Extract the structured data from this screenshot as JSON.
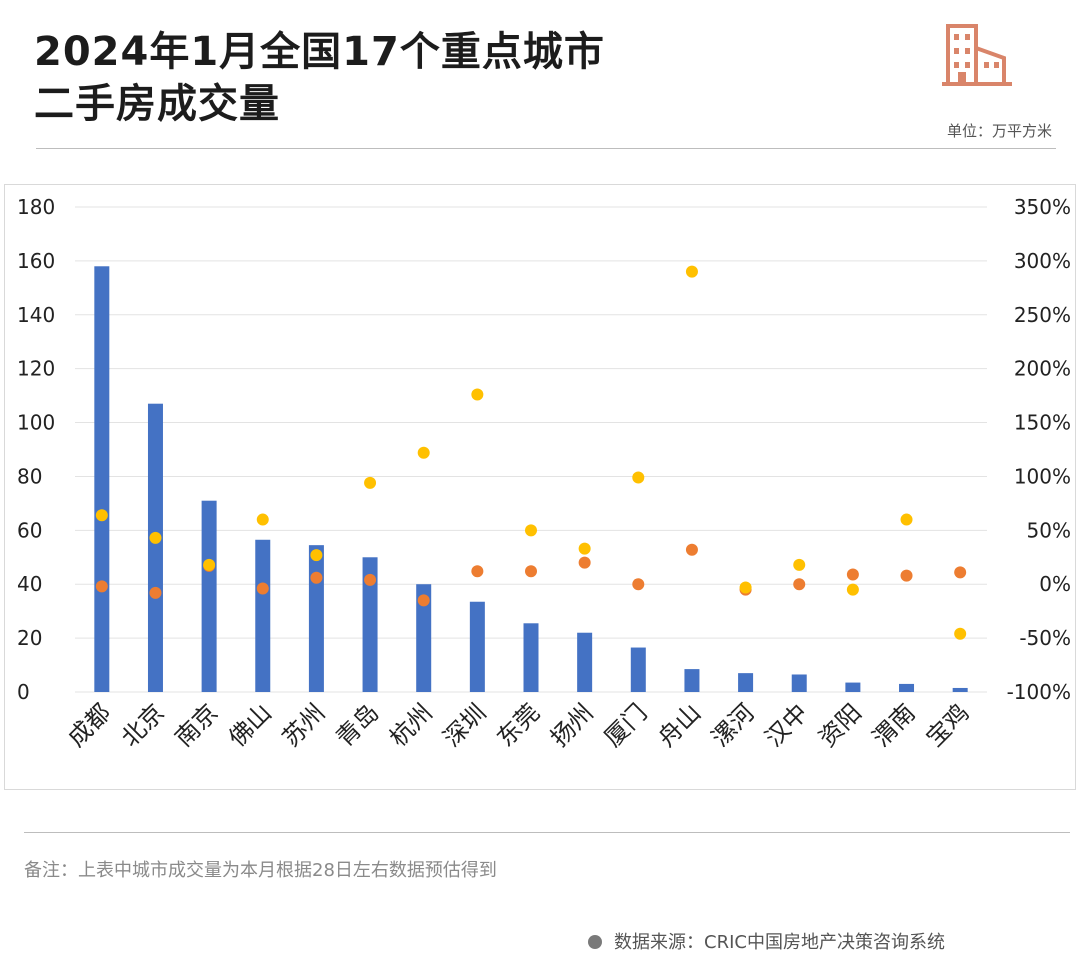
{
  "header": {
    "title_line1": "2024年1月全国17个重点城市",
    "title_line2": "二手房成交量",
    "unit": "单位：万平方米",
    "logo_icon": "building-icon"
  },
  "colors": {
    "bar": "#4472C4",
    "dot_orange": "#ED7D31",
    "dot_yellow": "#FFC000",
    "logo": "#D9856A"
  },
  "chart_data": {
    "type": "bar",
    "categories": [
      "成都",
      "北京",
      "南京",
      "佛山",
      "苏州",
      "青岛",
      "杭州",
      "深圳",
      "东莞",
      "扬州",
      "厦门",
      "舟山",
      "漯河",
      "汉中",
      "资阳",
      "渭南",
      "宝鸡"
    ],
    "series": [
      {
        "type": "bar",
        "axis": "left",
        "values": [
          158,
          107,
          71,
          56.5,
          54.5,
          50,
          40,
          33.5,
          25.5,
          22,
          16.5,
          8.5,
          7,
          6.5,
          3.5,
          3,
          1.5
        ]
      },
      {
        "type": "scatter",
        "axis": "right",
        "color": "orange",
        "values": [
          -2,
          -8,
          17,
          -4,
          6,
          4,
          -15,
          12,
          12,
          20,
          0,
          32,
          -5,
          0,
          9,
          8,
          11
        ]
      },
      {
        "type": "scatter",
        "axis": "right",
        "color": "yellow",
        "values": [
          64,
          43,
          18,
          null,
          27,
          null,
          null,
          176,
          50,
          33,
          99,
          290,
          -3,
          18,
          -5,
          60,
          -46
        ]
      }
    ],
    "orange_overrides": {
      "佛山": -4
    },
    "yellow_extra": {
      "佛山": 60,
      "青岛": 94,
      "杭州": 122
    },
    "left_axis": {
      "ylim": [
        0,
        180
      ],
      "ticks": [
        "0",
        "20",
        "40",
        "60",
        "80",
        "100",
        "120",
        "140",
        "160",
        "180"
      ]
    },
    "right_axis": {
      "ylim": [
        -100,
        350
      ],
      "ticks": [
        "-100%",
        "-50%",
        "0%",
        "50%",
        "100%",
        "150%",
        "200%",
        "250%",
        "300%",
        "350%"
      ]
    },
    "grid": true
  },
  "footer": {
    "note": "备注：上表中城市成交量为本月根据28日左右数据预估得到",
    "source": "数据来源：CRIC中国房地产决策咨询系统"
  }
}
